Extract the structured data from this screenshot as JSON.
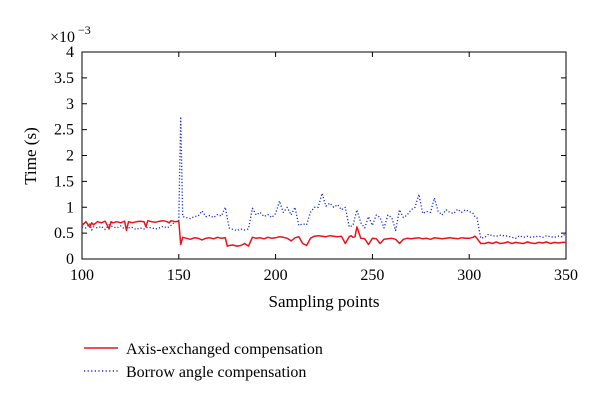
{
  "chart_data": {
    "type": "line",
    "title": "",
    "xlabel": "Sampling points",
    "ylabel": "Time (s)",
    "y_multiplier_base": "×10",
    "y_multiplier_exp": "−3",
    "xlim": [
      100,
      350
    ],
    "ylim": [
      0,
      4
    ],
    "xticks": [
      100,
      150,
      200,
      250,
      300,
      350
    ],
    "yticks": [
      0,
      0.5,
      1,
      1.5,
      2,
      2.5,
      3,
      3.5,
      4
    ],
    "grid": false,
    "legend_position": "below",
    "series": [
      {
        "name": "Axis-exchanged compensation",
        "color": "#e8141b",
        "style": "solid",
        "x": [
          100,
          102,
          104,
          105,
          106,
          108,
          110,
          112,
          114,
          115,
          116,
          118,
          120,
          122,
          123,
          124,
          126,
          128,
          130,
          132,
          133,
          134,
          136,
          138,
          140,
          142,
          144,
          145,
          146,
          148,
          150,
          151,
          152,
          154,
          156,
          158,
          160,
          162,
          164,
          166,
          168,
          170,
          172,
          174,
          175,
          176,
          178,
          180,
          182,
          184,
          186,
          188,
          190,
          192,
          194,
          196,
          198,
          200,
          202,
          204,
          206,
          208,
          210,
          212,
          214,
          216,
          218,
          220,
          222,
          224,
          226,
          228,
          230,
          232,
          234,
          236,
          238,
          239,
          240,
          241,
          242,
          244,
          246,
          248,
          250,
          252,
          254,
          256,
          258,
          260,
          262,
          264,
          266,
          268,
          270,
          272,
          274,
          276,
          278,
          280,
          282,
          284,
          286,
          288,
          290,
          292,
          294,
          296,
          298,
          300,
          302,
          303,
          304,
          306,
          308,
          310,
          312,
          314,
          316,
          318,
          320,
          322,
          324,
          326,
          328,
          330,
          332,
          334,
          336,
          338,
          340,
          342,
          344,
          346,
          348,
          350
        ],
        "y": [
          0.65,
          0.72,
          0.62,
          0.7,
          0.66,
          0.72,
          0.7,
          0.73,
          0.58,
          0.72,
          0.7,
          0.72,
          0.7,
          0.73,
          0.55,
          0.72,
          0.7,
          0.72,
          0.73,
          0.72,
          0.62,
          0.74,
          0.72,
          0.71,
          0.73,
          0.74,
          0.72,
          0.7,
          0.74,
          0.72,
          0.73,
          0.28,
          0.42,
          0.4,
          0.38,
          0.41,
          0.4,
          0.37,
          0.4,
          0.41,
          0.39,
          0.42,
          0.4,
          0.41,
          0.25,
          0.26,
          0.27,
          0.25,
          0.26,
          0.3,
          0.25,
          0.42,
          0.4,
          0.41,
          0.39,
          0.42,
          0.4,
          0.41,
          0.43,
          0.42,
          0.4,
          0.35,
          0.41,
          0.43,
          0.3,
          0.26,
          0.4,
          0.44,
          0.45,
          0.44,
          0.43,
          0.45,
          0.44,
          0.43,
          0.44,
          0.3,
          0.43,
          0.45,
          0.42,
          0.43,
          0.62,
          0.4,
          0.39,
          0.28,
          0.4,
          0.39,
          0.3,
          0.38,
          0.39,
          0.4,
          0.38,
          0.3,
          0.38,
          0.4,
          0.39,
          0.4,
          0.41,
          0.39,
          0.4,
          0.38,
          0.41,
          0.4,
          0.39,
          0.4,
          0.41,
          0.4,
          0.39,
          0.41,
          0.4,
          0.4,
          0.42,
          0.44,
          0.4,
          0.3,
          0.3,
          0.32,
          0.3,
          0.33,
          0.3,
          0.31,
          0.33,
          0.3,
          0.32,
          0.31,
          0.3,
          0.33,
          0.31,
          0.3,
          0.32,
          0.31,
          0.33,
          0.3,
          0.32,
          0.31,
          0.32,
          0.32
        ]
      },
      {
        "name": "Borrow angle compensation",
        "color": "#1c2bd0",
        "style": "dotted",
        "x": [
          100,
          102,
          104,
          105,
          106,
          108,
          110,
          112,
          114,
          116,
          118,
          120,
          122,
          124,
          126,
          128,
          130,
          132,
          134,
          136,
          138,
          140,
          142,
          144,
          146,
          148,
          149,
          150,
          151,
          152,
          154,
          156,
          158,
          160,
          162,
          164,
          166,
          168,
          170,
          172,
          174,
          176,
          178,
          180,
          182,
          184,
          186,
          188,
          190,
          192,
          194,
          196,
          198,
          200,
          202,
          204,
          206,
          208,
          210,
          212,
          214,
          216,
          218,
          220,
          222,
          224,
          226,
          228,
          230,
          232,
          234,
          236,
          238,
          240,
          242,
          244,
          246,
          248,
          250,
          252,
          254,
          256,
          258,
          260,
          262,
          264,
          266,
          268,
          270,
          272,
          274,
          276,
          278,
          280,
          282,
          284,
          286,
          288,
          290,
          292,
          294,
          296,
          298,
          300,
          302,
          303,
          304,
          306,
          308,
          310,
          312,
          314,
          316,
          318,
          320,
          322,
          324,
          326,
          328,
          330,
          332,
          334,
          336,
          338,
          340,
          342,
          344,
          346,
          348,
          350
        ],
        "y": [
          0.62,
          0.6,
          0.68,
          0.56,
          0.62,
          0.6,
          0.63,
          0.57,
          0.66,
          0.62,
          0.6,
          0.64,
          0.58,
          0.6,
          0.61,
          0.57,
          0.6,
          0.58,
          0.61,
          0.6,
          0.58,
          0.6,
          0.63,
          0.6,
          0.65,
          0.72,
          0.72,
          0.75,
          2.75,
          0.82,
          0.8,
          0.78,
          0.82,
          0.83,
          0.93,
          0.82,
          0.84,
          0.8,
          0.86,
          0.83,
          1.0,
          0.6,
          0.57,
          0.55,
          0.58,
          0.56,
          0.58,
          0.98,
          0.85,
          0.9,
          0.82,
          0.86,
          0.8,
          0.88,
          1.12,
          0.9,
          1.0,
          0.85,
          1.0,
          0.65,
          0.68,
          0.66,
          0.9,
          1.0,
          1.0,
          1.27,
          1.02,
          1.08,
          1.0,
          1.05,
          0.95,
          1.0,
          0.62,
          0.65,
          0.95,
          0.7,
          0.6,
          0.82,
          0.65,
          0.85,
          0.8,
          0.6,
          0.85,
          0.8,
          0.55,
          0.95,
          0.8,
          0.85,
          0.95,
          1.0,
          1.25,
          0.88,
          0.92,
          0.9,
          1.18,
          0.92,
          0.85,
          0.95,
          0.9,
          0.88,
          0.96,
          0.9,
          0.95,
          0.92,
          0.88,
          0.82,
          0.8,
          0.4,
          0.42,
          0.48,
          0.45,
          0.44,
          0.46,
          0.45,
          0.44,
          0.42,
          0.4,
          0.45,
          0.42,
          0.44,
          0.42,
          0.43,
          0.44,
          0.42,
          0.45,
          0.43,
          0.42,
          0.44,
          0.43,
          0.5
        ]
      }
    ]
  }
}
